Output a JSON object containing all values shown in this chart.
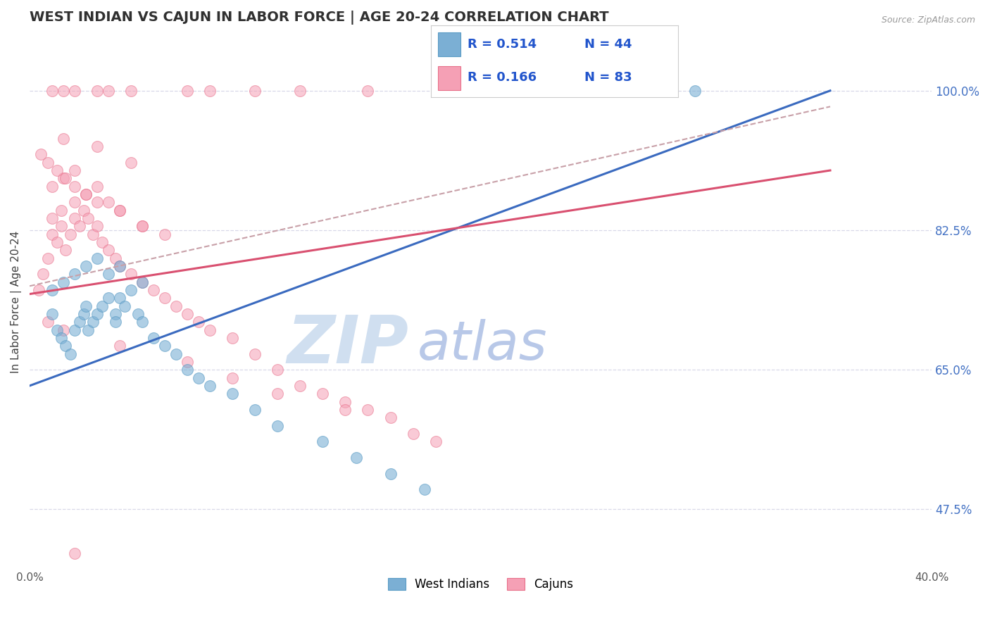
{
  "title": "WEST INDIAN VS CAJUN IN LABOR FORCE | AGE 20-24 CORRELATION CHART",
  "source": "Source: ZipAtlas.com",
  "ylabel": "In Labor Force | Age 20-24",
  "xlim": [
    0.0,
    40.0
  ],
  "ylim": [
    40.0,
    107.0
  ],
  "ytick_vals": [
    47.5,
    65.0,
    82.5,
    100.0
  ],
  "ytick_labels": [
    "47.5%",
    "65.0%",
    "82.5%",
    "100.0%"
  ],
  "xtick_vals": [
    0.0,
    40.0
  ],
  "xtick_labels": [
    "0.0%",
    "40.0%"
  ],
  "legend_r_blue": "R = 0.514",
  "legend_n_blue": "N = 44",
  "legend_r_pink": "R = 0.166",
  "legend_n_pink": "N = 83",
  "legend_label_blue": "West Indians",
  "legend_label_pink": "Cajuns",
  "blue_color": "#7bafd4",
  "blue_edge_color": "#5a9cc5",
  "pink_color": "#f5a0b5",
  "pink_edge_color": "#e8708a",
  "blue_line_color": "#3a6abf",
  "pink_line_color": "#d95070",
  "gray_dash_color": "#c8a0a8",
  "watermark_zip": "ZIP",
  "watermark_atlas": "atlas",
  "watermark_color_zip": "#d0dff0",
  "watermark_color_atlas": "#b8c8e8",
  "background_color": "#ffffff",
  "grid_color": "#d8d8e8",
  "title_color": "#303030",
  "right_tick_color": "#4472c4",
  "blue_trend_x0": 0.0,
  "blue_trend_y0": 63.0,
  "blue_trend_x1": 35.5,
  "blue_trend_y1": 100.0,
  "pink_trend_x0": 0.0,
  "pink_trend_y0": 74.5,
  "pink_trend_x1": 35.5,
  "pink_trend_y1": 90.0,
  "gray_dash_x0": 0.0,
  "gray_dash_y0": 75.5,
  "gray_dash_x1": 35.5,
  "gray_dash_y1": 98.0,
  "blue_x": [
    1.0,
    1.2,
    1.4,
    1.6,
    1.8,
    2.0,
    2.2,
    2.4,
    2.6,
    2.8,
    3.0,
    3.2,
    3.5,
    3.8,
    4.0,
    4.2,
    4.5,
    4.8,
    5.0,
    5.5,
    6.0,
    6.5,
    7.0,
    7.5,
    8.0,
    9.0,
    10.0,
    11.0,
    13.0,
    14.5,
    16.0,
    17.5,
    1.5,
    2.0,
    2.5,
    3.0,
    3.5,
    4.0,
    5.0,
    28.0,
    29.5,
    1.0,
    2.5,
    3.8
  ],
  "blue_y": [
    72.0,
    70.0,
    69.0,
    68.0,
    67.0,
    70.0,
    71.0,
    72.0,
    70.0,
    71.0,
    72.0,
    73.0,
    74.0,
    72.0,
    74.0,
    73.0,
    75.0,
    72.0,
    71.0,
    69.0,
    68.0,
    67.0,
    65.0,
    64.0,
    63.0,
    62.0,
    60.0,
    58.0,
    56.0,
    54.0,
    52.0,
    50.0,
    76.0,
    77.0,
    78.0,
    79.0,
    77.0,
    78.0,
    76.0,
    100.0,
    100.0,
    75.0,
    73.0,
    71.0
  ],
  "pink_x": [
    0.4,
    0.6,
    0.8,
    1.0,
    1.0,
    1.2,
    1.4,
    1.4,
    1.6,
    1.8,
    2.0,
    2.0,
    2.2,
    2.4,
    2.6,
    2.8,
    3.0,
    3.2,
    3.5,
    3.8,
    4.0,
    4.5,
    5.0,
    5.5,
    6.0,
    6.5,
    7.0,
    7.5,
    8.0,
    9.0,
    10.0,
    11.0,
    12.0,
    13.0,
    14.0,
    15.0,
    16.0,
    17.0,
    18.0,
    1.0,
    1.5,
    2.0,
    2.5,
    3.0,
    3.5,
    4.0,
    5.0,
    6.0,
    0.5,
    0.8,
    1.2,
    1.6,
    2.0,
    2.5,
    3.0,
    4.0,
    5.0,
    1.0,
    1.5,
    2.0,
    3.0,
    3.5,
    4.5,
    7.0,
    8.0,
    10.0,
    12.0,
    15.0,
    20.0,
    22.0,
    1.5,
    3.0,
    4.5,
    0.8,
    1.5,
    4.0,
    7.0,
    9.0,
    11.0,
    14.0,
    2.0
  ],
  "pink_y": [
    75.0,
    77.0,
    79.0,
    82.0,
    84.0,
    81.0,
    83.0,
    85.0,
    80.0,
    82.0,
    84.0,
    86.0,
    83.0,
    85.0,
    84.0,
    82.0,
    83.0,
    81.0,
    80.0,
    79.0,
    78.0,
    77.0,
    76.0,
    75.0,
    74.0,
    73.0,
    72.0,
    71.0,
    70.0,
    69.0,
    67.0,
    65.0,
    63.0,
    62.0,
    61.0,
    60.0,
    59.0,
    57.0,
    56.0,
    88.0,
    89.0,
    90.0,
    87.0,
    88.0,
    86.0,
    85.0,
    83.0,
    82.0,
    92.0,
    91.0,
    90.0,
    89.0,
    88.0,
    87.0,
    86.0,
    85.0,
    83.0,
    100.0,
    100.0,
    100.0,
    100.0,
    100.0,
    100.0,
    100.0,
    100.0,
    100.0,
    100.0,
    100.0,
    100.0,
    100.0,
    94.0,
    93.0,
    91.0,
    71.0,
    70.0,
    68.0,
    66.0,
    64.0,
    62.0,
    60.0,
    42.0
  ]
}
